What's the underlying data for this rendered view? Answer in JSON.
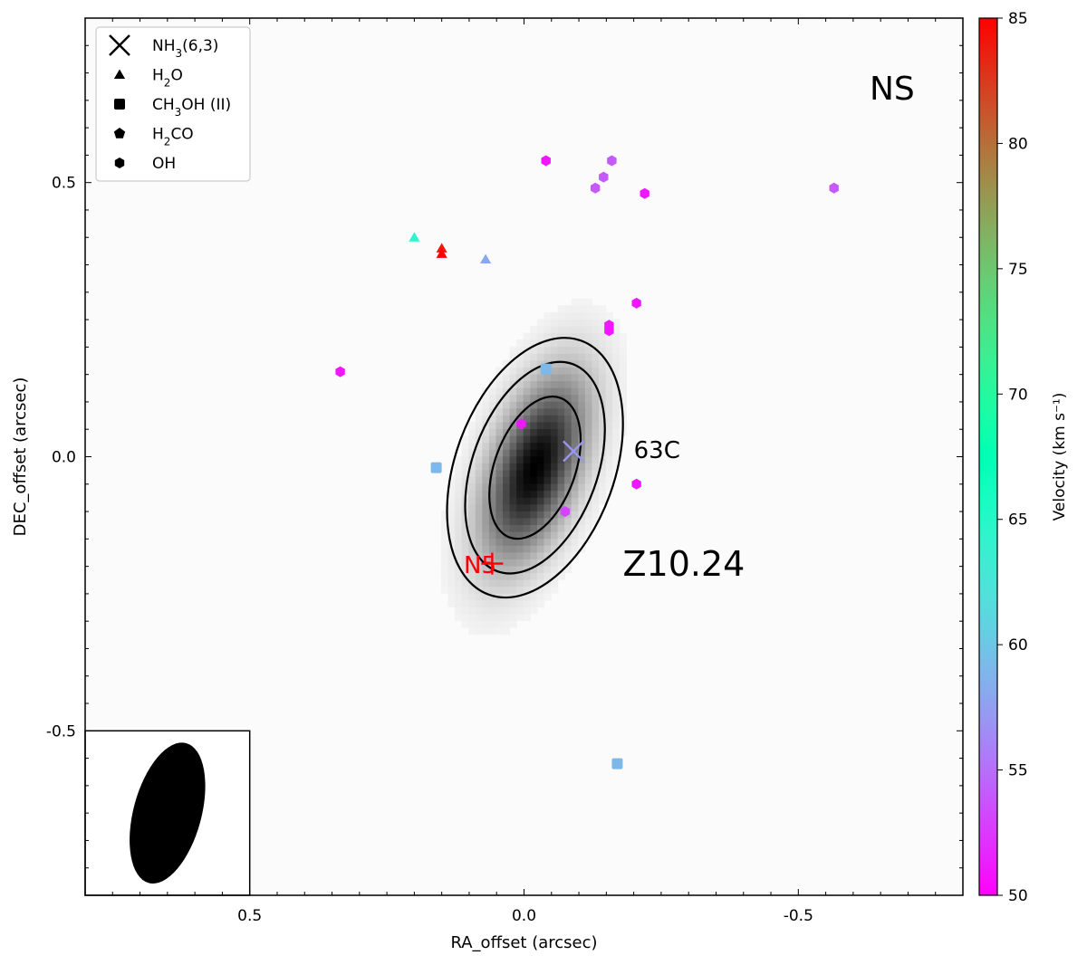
{
  "chart_data": {
    "type": "scatter",
    "title": "",
    "panel_label": "NS",
    "xlabel": "RA_offset (arcsec)",
    "ylabel": "DEC_offset (arcsec)",
    "xlim": [
      0.8,
      -0.8
    ],
    "ylim": [
      -0.8,
      0.8
    ],
    "xticks": [
      0.5,
      0.0,
      -0.5
    ],
    "xtick_labels": [
      "0.5",
      "0.0",
      "-0.5"
    ],
    "yticks": [
      -0.5,
      0.0,
      0.5
    ],
    "ytick_labels": [
      "-0.5",
      "0.0",
      "0.5"
    ],
    "colorbar": {
      "label": "Velocity (km s⁻¹)",
      "min": 50,
      "max": 85,
      "ticks": [
        50,
        55,
        60,
        65,
        70,
        75,
        80,
        85
      ],
      "tick_labels": [
        "50",
        "55",
        "60",
        "65",
        "70",
        "75",
        "80",
        "85"
      ],
      "colormap": "rainbow"
    },
    "legend": {
      "location": "top-left",
      "entries": [
        {
          "marker": "x",
          "label": "NH",
          "sub": "3",
          "suffix": "(6,3)"
        },
        {
          "marker": "triangle",
          "label": "H",
          "sub": "2",
          "suffix": "O"
        },
        {
          "marker": "square",
          "label": "CH",
          "sub": "3",
          "suffix": "OH (II)"
        },
        {
          "marker": "pentagon",
          "label": "H",
          "sub": "2",
          "suffix": "CO"
        },
        {
          "marker": "hexagon",
          "label": "OH",
          "sub": "",
          "suffix": ""
        }
      ]
    },
    "annotations": [
      {
        "text": "63C",
        "x": -0.2,
        "y": 0.01,
        "size": "medium"
      },
      {
        "text": "Z10.24",
        "x": -0.18,
        "y": -0.2,
        "size": "large"
      },
      {
        "text": "N5",
        "x": 0.08,
        "y": -0.2,
        "size": "medium",
        "color": "#ff0000"
      }
    ],
    "reference_marker": {
      "name": "N5",
      "marker": "plus",
      "x": 0.058,
      "y": -0.195,
      "color": "#ff0000"
    },
    "emission": {
      "peak": [
        -0.02,
        -0.02
      ],
      "sigma_major": 0.115,
      "sigma_minor": 0.05,
      "position_angle_deg": 20,
      "contour_levels_fraction": [
        0.5,
        0.25,
        0.15
      ]
    },
    "beam": {
      "major": 0.22,
      "minor": 0.08,
      "position_angle_deg": 15,
      "location": "bottom-left"
    },
    "series": [
      {
        "name": "NH3(6,3)",
        "marker": "x",
        "points": [
          {
            "x": -0.09,
            "y": 0.01,
            "v": 57
          }
        ]
      },
      {
        "name": "H2O",
        "marker": "triangle",
        "points": [
          {
            "x": 0.2,
            "y": 0.4,
            "v": 64
          },
          {
            "x": 0.15,
            "y": 0.38,
            "v": 84
          },
          {
            "x": 0.15,
            "y": 0.37,
            "v": 85
          },
          {
            "x": 0.07,
            "y": 0.36,
            "v": 58
          }
        ]
      },
      {
        "name": "CH3OH (II)",
        "marker": "square",
        "points": [
          {
            "x": -0.04,
            "y": 0.16,
            "v": 59
          },
          {
            "x": 0.16,
            "y": -0.02,
            "v": 59
          },
          {
            "x": -0.17,
            "y": -0.56,
            "v": 59
          }
        ]
      },
      {
        "name": "H2CO",
        "marker": "pentagon",
        "points": []
      },
      {
        "name": "OH",
        "marker": "hexagon",
        "points": [
          {
            "x": -0.04,
            "y": 0.54,
            "v": 51
          },
          {
            "x": -0.16,
            "y": 0.54,
            "v": 54
          },
          {
            "x": -0.145,
            "y": 0.51,
            "v": 54
          },
          {
            "x": -0.13,
            "y": 0.49,
            "v": 54
          },
          {
            "x": -0.22,
            "y": 0.48,
            "v": 51
          },
          {
            "x": -0.565,
            "y": 0.49,
            "v": 54
          },
          {
            "x": -0.205,
            "y": 0.28,
            "v": 51
          },
          {
            "x": -0.155,
            "y": 0.24,
            "v": 51
          },
          {
            "x": -0.155,
            "y": 0.23,
            "v": 51
          },
          {
            "x": 0.335,
            "y": 0.155,
            "v": 51
          },
          {
            "x": 0.005,
            "y": 0.06,
            "v": 51
          },
          {
            "x": -0.205,
            "y": -0.05,
            "v": 51
          },
          {
            "x": -0.075,
            "y": -0.1,
            "v": 53
          }
        ]
      }
    ]
  }
}
